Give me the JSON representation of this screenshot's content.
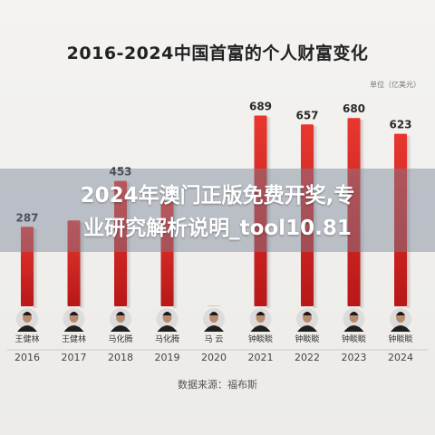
{
  "chart_data": {
    "type": "bar",
    "title": "2016-2024中国首富的个人财富变化",
    "unit": "单位（亿美元）",
    "categories": [
      "2016",
      "2017",
      "2018",
      "2019",
      "2020",
      "2021",
      "2022",
      "2023",
      "2024"
    ],
    "names": [
      "王健林",
      "王健林",
      "马化腾",
      "马化腾",
      "马 云",
      "钟睒睒",
      "钟睒睒",
      "钟睒睒",
      "钟睒睒"
    ],
    "values": [
      287,
      310,
      453,
      380,
      1,
      689,
      657,
      680,
      623
    ],
    "labels": [
      "287",
      "",
      "453",
      "",
      "",
      "689",
      "657",
      "680",
      "623"
    ],
    "ylim": [
      0,
      720
    ],
    "source": "数据来源：福布斯",
    "colors": {
      "bar_hi": "#e8372f",
      "bar_lo": "#b81818",
      "baseline": "#c7c7c7"
    }
  },
  "overlay": {
    "line1": "2024年澳门正版免费开奖,专",
    "line2": "业研究解析说明_tool10.81"
  }
}
